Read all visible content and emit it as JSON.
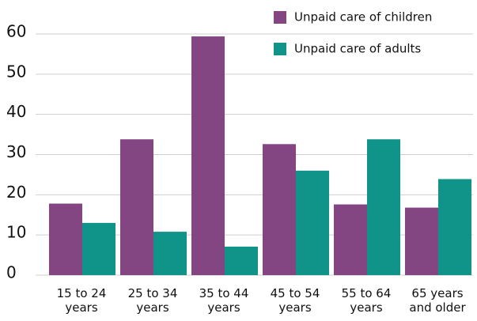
{
  "chart_data": {
    "type": "bar",
    "categories": [
      "15 to 24\nyears",
      "25 to 34\nyears",
      "35 to 44\nyears",
      "45 to 54\nyears",
      "55 to 64\nyears",
      "65 years\nand older"
    ],
    "series": [
      {
        "name": "Unpaid care of children",
        "color": "#834683",
        "values": [
          17.8,
          33.8,
          59.4,
          32.6,
          17.6,
          16.8
        ]
      },
      {
        "name": "Unpaid care of adults",
        "color": "#10948a",
        "values": [
          13.0,
          10.8,
          7.1,
          26.0,
          33.8,
          23.9
        ]
      }
    ],
    "ylim": [
      0,
      60
    ],
    "yticks": [
      0,
      10,
      20,
      30,
      40,
      50,
      60
    ],
    "grid": true,
    "legend": "top-right"
  }
}
